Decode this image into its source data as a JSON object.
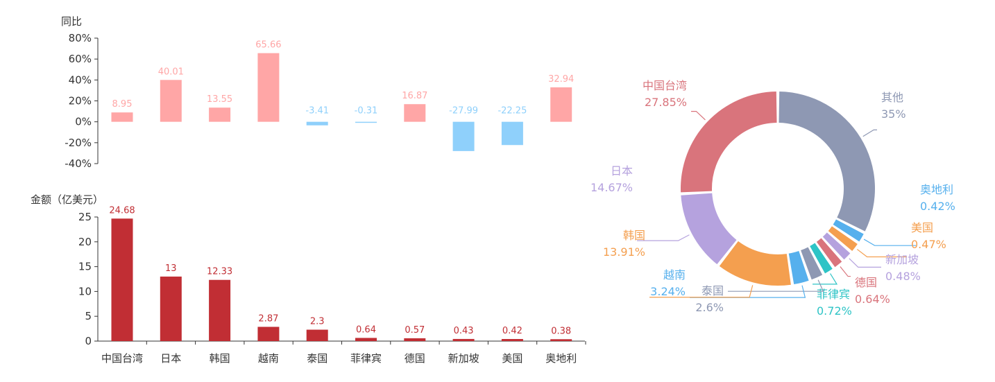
{
  "chart_data": [
    {
      "type": "bar",
      "ylabel": "同比",
      "ylim": [
        -40,
        80
      ],
      "yticks": [
        "80%",
        "60%",
        "40%",
        "20%",
        "0%",
        "-20%",
        "-40%"
      ],
      "categories": [
        "中国台湾",
        "日本",
        "韩国",
        "越南",
        "泰国",
        "菲律宾",
        "德国",
        "新加坡",
        "美国",
        "奥地利"
      ],
      "values": [
        8.95,
        40.01,
        13.55,
        65.66,
        -3.41,
        -0.31,
        16.87,
        -27.99,
        -22.25,
        32.94
      ],
      "value_labels": [
        "8.95",
        "40.01",
        "13.55",
        "65.66",
        "-3.41",
        "-0.31",
        "16.87",
        "-27.99",
        "-22.25",
        "32.94"
      ],
      "positive_color": "#ffa6a6",
      "negative_color": "#8fd0fb"
    },
    {
      "type": "bar",
      "ylabel": "金额（亿美元）",
      "ylim": [
        0,
        25
      ],
      "yticks": [
        "25",
        "20",
        "15",
        "10",
        "5",
        "0"
      ],
      "categories": [
        "中国台湾",
        "日本",
        "韩国",
        "越南",
        "泰国",
        "菲律宾",
        "德国",
        "新加坡",
        "美国",
        "奥地利"
      ],
      "values": [
        24.68,
        13,
        12.33,
        2.87,
        2.3,
        0.64,
        0.57,
        0.43,
        0.42,
        0.38
      ],
      "value_labels": [
        "24.68",
        "13",
        "12.33",
        "2.87",
        "2.3",
        "0.64",
        "0.57",
        "0.43",
        "0.42",
        "0.38"
      ],
      "bar_color": "#c12e34"
    },
    {
      "type": "pie",
      "variant": "donut",
      "slices": [
        {
          "name": "其他",
          "value": 35,
          "label": "35%",
          "color": "#8e98b3"
        },
        {
          "name": "奥地利",
          "value": 0.42,
          "label": "0.42%",
          "color": "#56b0ed"
        },
        {
          "name": "美国",
          "value": 0.47,
          "label": "0.47%",
          "color": "#f49f4f"
        },
        {
          "name": "新加坡",
          "value": 0.48,
          "label": "0.48%",
          "color": "#b5a2de"
        },
        {
          "name": "德国",
          "value": 0.64,
          "label": "0.64%",
          "color": "#d9747c"
        },
        {
          "name": "菲律宾",
          "value": 0.72,
          "label": "0.72%",
          "color": "#2ec4c6"
        },
        {
          "name": "泰国",
          "value": 2.6,
          "label": "2.6%",
          "color": "#8e98b3"
        },
        {
          "name": "越南",
          "value": 3.24,
          "label": "3.24%",
          "color": "#56b0ed"
        },
        {
          "name": "韩国",
          "value": 13.91,
          "label": "13.91%",
          "color": "#f49f4f"
        },
        {
          "name": "日本",
          "value": 14.67,
          "label": "14.67%",
          "color": "#b5a2de"
        },
        {
          "name": "中国台湾",
          "value": 27.85,
          "label": "27.85%",
          "color": "#d9747c"
        }
      ]
    }
  ]
}
